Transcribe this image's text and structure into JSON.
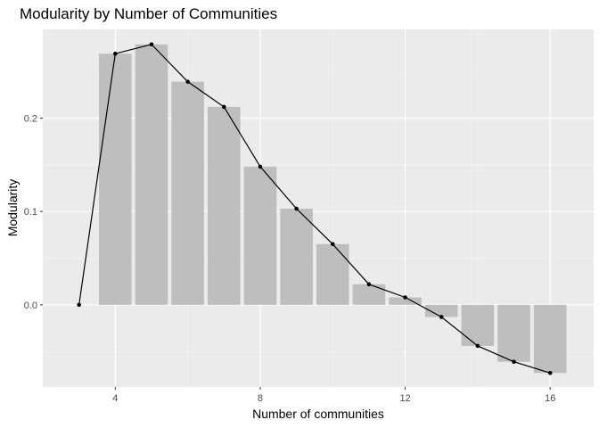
{
  "chart_data": {
    "type": "bar",
    "title": "Modularity by Number of Communities",
    "xlabel": "Number of communities",
    "ylabel": "Modularity",
    "xlim": [
      2.0,
      17.2
    ],
    "ylim": [
      -0.088,
      0.295
    ],
    "xticks": [
      4,
      8,
      12,
      16
    ],
    "yticks": [
      0.0,
      0.1,
      0.2
    ],
    "ytick_labels": [
      "0.0",
      "0.1",
      "0.2"
    ],
    "grid": true,
    "bars": {
      "x": [
        4,
        5,
        6,
        7,
        8,
        9,
        10,
        11,
        12,
        13,
        14,
        15,
        16
      ],
      "values": [
        0.269,
        0.279,
        0.239,
        0.212,
        0.148,
        0.103,
        0.065,
        0.022,
        0.008,
        -0.013,
        -0.044,
        -0.061,
        -0.073
      ],
      "color": "#bebebe"
    },
    "line": {
      "x": [
        3,
        4,
        5,
        6,
        7,
        8,
        9,
        10,
        11,
        12,
        13,
        14,
        15,
        16
      ],
      "values": [
        0.0,
        0.269,
        0.279,
        0.239,
        0.212,
        0.148,
        0.103,
        0.065,
        0.022,
        0.008,
        -0.013,
        -0.044,
        -0.061,
        -0.073
      ],
      "color": "#000000"
    },
    "panel_background": "#ebebeb"
  }
}
